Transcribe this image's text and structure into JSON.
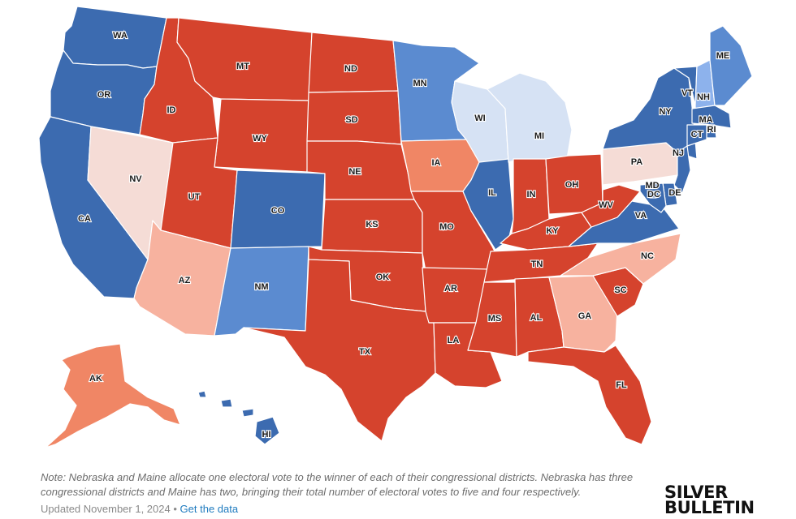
{
  "colors": {
    "solid_d": "#3c6bb0",
    "likely_d": "#5b8bd0",
    "lean_d": "#d6e2f4",
    "tilt_d": "#8db2ec",
    "tilt_r": "#f5dcd6",
    "lean_r": "#f7b29f",
    "likely_r": "#f08665",
    "solid_r": "#d5432d"
  },
  "states": [
    {
      "code": "WA",
      "rating": "solid_d"
    },
    {
      "code": "OR",
      "rating": "solid_d"
    },
    {
      "code": "CA",
      "rating": "solid_d"
    },
    {
      "code": "NV",
      "rating": "tilt_r"
    },
    {
      "code": "ID",
      "rating": "solid_r"
    },
    {
      "code": "MT",
      "rating": "solid_r"
    },
    {
      "code": "WY",
      "rating": "solid_r"
    },
    {
      "code": "UT",
      "rating": "solid_r"
    },
    {
      "code": "CO",
      "rating": "solid_d"
    },
    {
      "code": "AZ",
      "rating": "lean_r"
    },
    {
      "code": "NM",
      "rating": "likely_d"
    },
    {
      "code": "ND",
      "rating": "solid_r"
    },
    {
      "code": "SD",
      "rating": "solid_r"
    },
    {
      "code": "NE",
      "rating": "solid_r"
    },
    {
      "code": "KS",
      "rating": "solid_r"
    },
    {
      "code": "OK",
      "rating": "solid_r"
    },
    {
      "code": "TX",
      "rating": "solid_r"
    },
    {
      "code": "MN",
      "rating": "likely_d"
    },
    {
      "code": "IA",
      "rating": "likely_r"
    },
    {
      "code": "MO",
      "rating": "solid_r"
    },
    {
      "code": "AR",
      "rating": "solid_r"
    },
    {
      "code": "LA",
      "rating": "solid_r"
    },
    {
      "code": "WI",
      "rating": "lean_d"
    },
    {
      "code": "IL",
      "rating": "solid_d"
    },
    {
      "code": "MI",
      "rating": "lean_d"
    },
    {
      "code": "IN",
      "rating": "solid_r"
    },
    {
      "code": "OH",
      "rating": "solid_r"
    },
    {
      "code": "KY",
      "rating": "solid_r"
    },
    {
      "code": "TN",
      "rating": "solid_r"
    },
    {
      "code": "MS",
      "rating": "solid_r"
    },
    {
      "code": "AL",
      "rating": "solid_r"
    },
    {
      "code": "GA",
      "rating": "lean_r"
    },
    {
      "code": "FL",
      "rating": "solid_r"
    },
    {
      "code": "SC",
      "rating": "solid_r"
    },
    {
      "code": "NC",
      "rating": "lean_r"
    },
    {
      "code": "VA",
      "rating": "solid_d"
    },
    {
      "code": "WV",
      "rating": "solid_r"
    },
    {
      "code": "PA",
      "rating": "tilt_r"
    },
    {
      "code": "NY",
      "rating": "solid_d"
    },
    {
      "code": "VT",
      "rating": "solid_d"
    },
    {
      "code": "NH",
      "rating": "tilt_d"
    },
    {
      "code": "ME",
      "rating": "likely_d"
    },
    {
      "code": "MA",
      "rating": "solid_d"
    },
    {
      "code": "RI",
      "rating": "solid_d"
    },
    {
      "code": "CT",
      "rating": "solid_d"
    },
    {
      "code": "NJ",
      "rating": "solid_d"
    },
    {
      "code": "DE",
      "rating": "solid_d"
    },
    {
      "code": "MD",
      "rating": "solid_d"
    },
    {
      "code": "DC",
      "rating": "solid_d"
    },
    {
      "code": "AK",
      "rating": "likely_r"
    },
    {
      "code": "HI",
      "rating": "solid_d"
    }
  ],
  "footer": {
    "note": "Note: Nebraska and Maine allocate one electoral vote to the winner of each of their congressional districts. Nebraska has three congressional districts and Maine has two, bringing their total number of electoral votes to five and four respectively.",
    "updated": "Updated November 1, 2024",
    "separator": "•",
    "link": "Get the data"
  },
  "logo": {
    "line1": "SILVER",
    "line2": "BULLETIN"
  }
}
